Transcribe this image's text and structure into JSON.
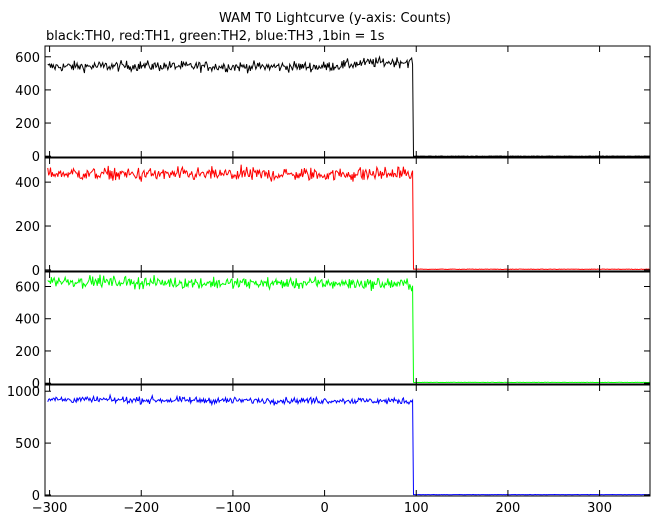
{
  "chart_data": {
    "type": "line",
    "title": "WAM T0 Lightcurve (y-axis: Counts)",
    "subtitle": "black:TH0, red:TH1, green:TH2, blue:TH3 ,1bin = 1s",
    "xlim": [
      -305,
      355
    ],
    "x_ticks": [
      -300,
      -200,
      -100,
      0,
      100,
      200,
      300
    ],
    "x_tick_labels": [
      "−300",
      "−200",
      "−100",
      "0",
      "100",
      "200",
      "300"
    ],
    "bin_seconds": 1,
    "drop_time": 97,
    "grid": false,
    "panels": [
      {
        "name": "TH0",
        "color": "#000000",
        "ylim": [
          -5,
          665
        ],
        "y_ticks": [
          0,
          200,
          400,
          600
        ],
        "y_tick_labels": [
          "0",
          "200",
          "400",
          "600"
        ],
        "level_before": [
          [
            -300,
            540
          ],
          [
            -200,
            545
          ],
          [
            -100,
            540
          ],
          [
            0,
            540
          ],
          [
            50,
            565
          ],
          [
            95,
            570
          ]
        ],
        "noise": 22,
        "level_after": 0
      },
      {
        "name": "TH1",
        "color": "#ff0000",
        "ylim": [
          -5,
          510
        ],
        "y_ticks": [
          0,
          200,
          400
        ],
        "y_tick_labels": [
          "0",
          "200",
          "400"
        ],
        "level_before": [
          [
            -300,
            440
          ],
          [
            -200,
            435
          ],
          [
            -100,
            435
          ],
          [
            0,
            435
          ],
          [
            95,
            440
          ]
        ],
        "noise": 22,
        "level_after": 3
      },
      {
        "name": "TH2",
        "color": "#00ff00",
        "ylim": [
          -5,
          690
        ],
        "y_ticks": [
          0,
          200,
          400,
          600
        ],
        "y_tick_labels": [
          "0",
          "200",
          "400",
          "600"
        ],
        "level_before": [
          [
            -300,
            635
          ],
          [
            -200,
            625
          ],
          [
            -100,
            620
          ],
          [
            0,
            620
          ],
          [
            95,
            615
          ]
        ],
        "noise": 25,
        "level_after": 5
      },
      {
        "name": "TH3",
        "color": "#0000ff",
        "ylim": [
          -10,
          1060
        ],
        "y_ticks": [
          0,
          500,
          1000
        ],
        "y_tick_labels": [
          "0",
          "500",
          "1000"
        ],
        "level_before": [
          [
            -300,
            920
          ],
          [
            -200,
            915
          ],
          [
            -100,
            910
          ],
          [
            0,
            910
          ],
          [
            95,
            905
          ]
        ],
        "noise": 22,
        "level_after": 3
      }
    ]
  }
}
